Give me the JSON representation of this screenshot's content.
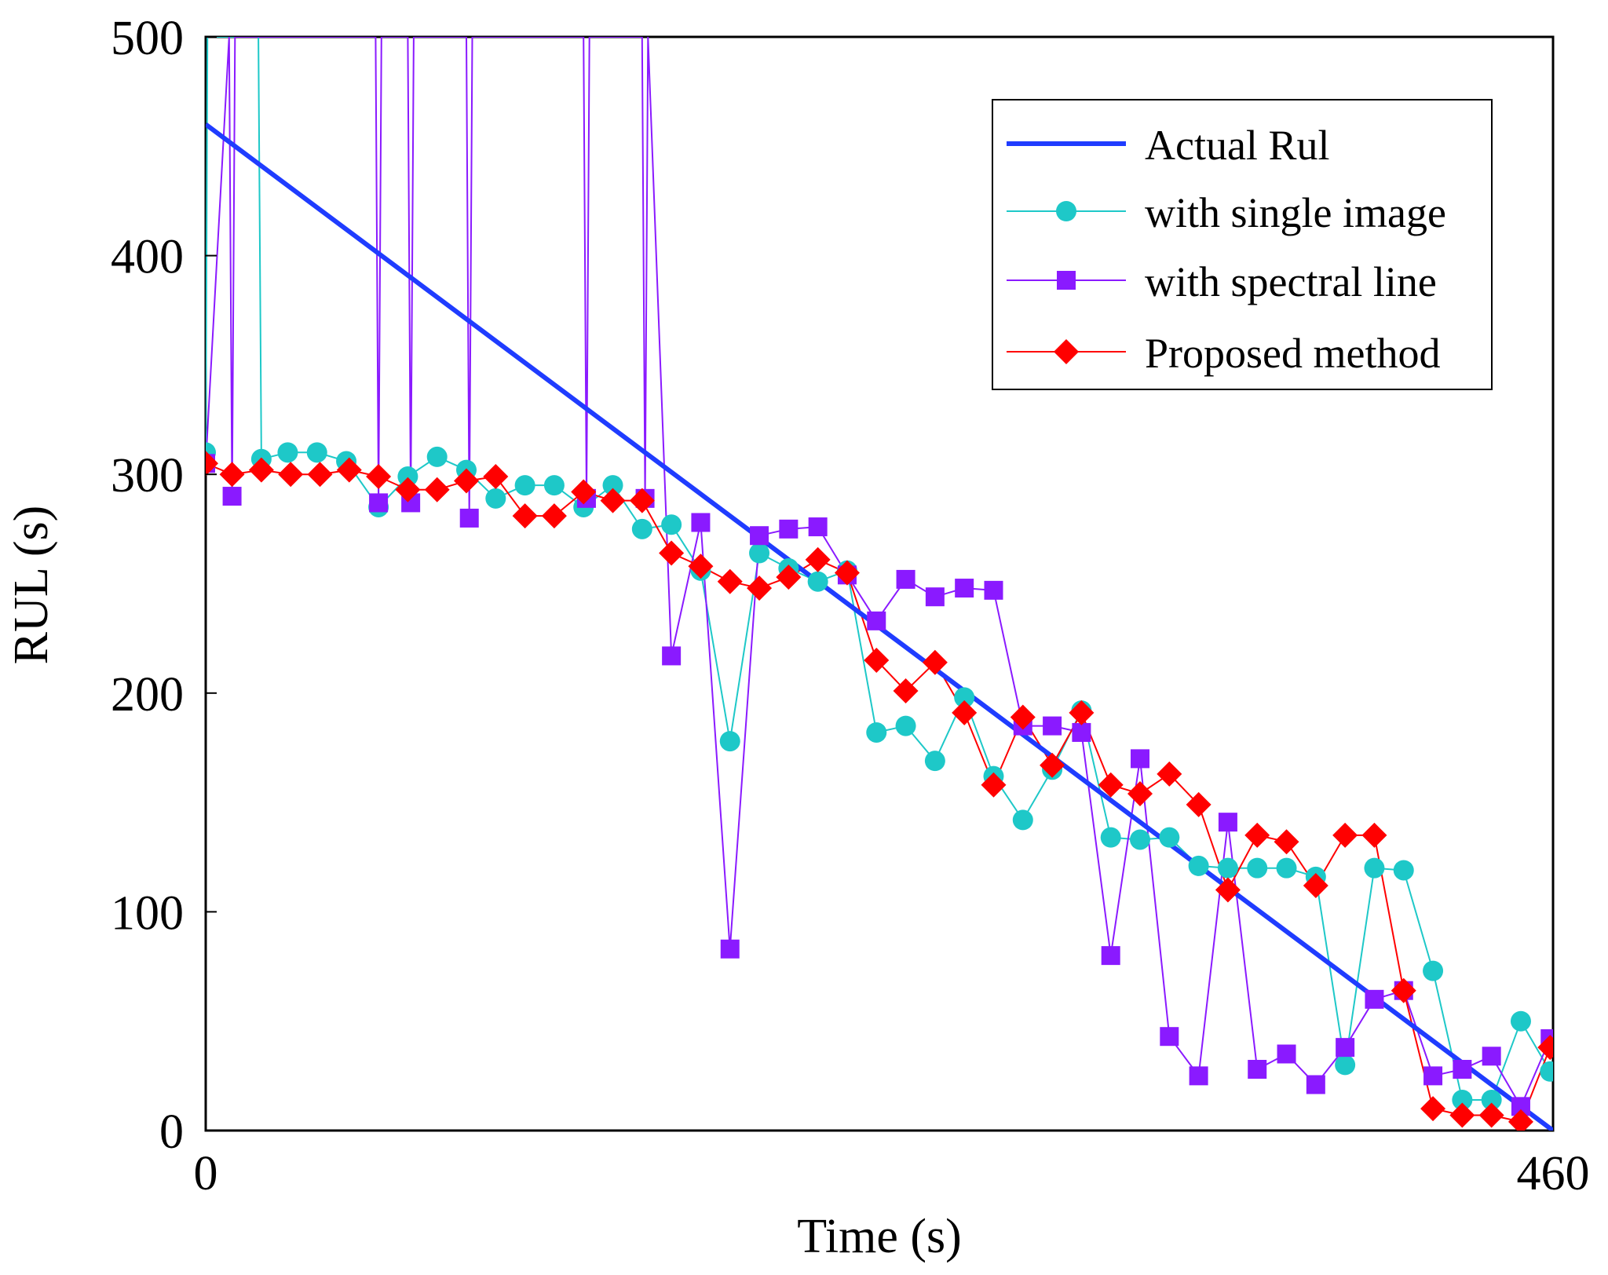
{
  "chart_data": {
    "type": "line",
    "title": "",
    "xlabel": "Time (s)",
    "ylabel": "RUL (s)",
    "xlim": [
      0,
      460
    ],
    "ylim": [
      0,
      500
    ],
    "x_ticks": [
      "0",
      "460"
    ],
    "y_ticks": [
      "0",
      "100",
      "200",
      "300",
      "400",
      "500"
    ],
    "legend_position": "top-right",
    "colors": {
      "actual": "#1f3cff",
      "single": "#1ec8c8",
      "spectral": "#8a1aff",
      "proposed": "#ff0000"
    },
    "series": [
      {
        "name": "Actual Rul",
        "key": "actual",
        "marker": "none",
        "x": [
          0,
          460
        ],
        "y": [
          460,
          0
        ]
      },
      {
        "name": "with single image",
        "key": "single",
        "marker": "circle",
        "x": [
          0,
          0.6,
          17,
          18,
          19,
          28,
          38,
          48,
          59,
          69,
          79,
          89,
          99,
          109,
          119,
          129,
          139,
          149,
          159,
          169,
          179,
          189,
          199,
          209,
          219,
          229,
          239,
          249,
          259,
          269,
          279,
          289,
          299,
          309,
          319,
          329,
          339,
          349,
          359,
          369,
          379,
          389,
          399,
          409,
          419,
          429,
          439,
          449,
          459
        ],
        "y": [
          310,
          500,
          500,
          500,
          307,
          310,
          310,
          306,
          285,
          299,
          308,
          302,
          289,
          295,
          295,
          285,
          295,
          275,
          277,
          256,
          178,
          264,
          257,
          251,
          256,
          182,
          185,
          169,
          198,
          162,
          142,
          165,
          192,
          134,
          133,
          134,
          121,
          120,
          120,
          120,
          116,
          30,
          120,
          119,
          73,
          14,
          14,
          50,
          27
        ]
      },
      {
        "name": "with spectral line",
        "key": "spectral",
        "marker": "square",
        "x": [
          0,
          8,
          9,
          10,
          58,
          59,
          60,
          69,
          70,
          71,
          89,
          90,
          91,
          129,
          130,
          131,
          149,
          150,
          151,
          159,
          169,
          179,
          189,
          199,
          209,
          219,
          229,
          239,
          249,
          259,
          269,
          279,
          289,
          299,
          309,
          319,
          329,
          339,
          349,
          359,
          369,
          379,
          389,
          399,
          409,
          419,
          429,
          439,
          449,
          459
        ],
        "y": [
          305,
          500,
          290,
          500,
          500,
          287,
          500,
          500,
          287,
          500,
          500,
          280,
          500,
          500,
          289,
          500,
          500,
          289,
          500,
          217,
          278,
          83,
          272,
          275,
          276,
          254,
          233,
          252,
          244,
          248,
          247,
          185,
          185,
          182,
          80,
          170,
          43,
          25,
          141,
          28,
          35,
          21,
          38,
          60,
          64,
          25,
          28,
          34,
          11,
          42
        ]
      },
      {
        "name": "Proposed method",
        "key": "proposed",
        "marker": "diamond",
        "x": [
          0,
          9,
          19,
          29,
          39,
          49,
          59,
          69,
          79,
          89,
          99,
          109,
          119,
          129,
          139,
          149,
          159,
          169,
          179,
          189,
          199,
          209,
          219,
          229,
          239,
          249,
          259,
          269,
          279,
          289,
          299,
          309,
          319,
          329,
          339,
          349,
          359,
          369,
          379,
          389,
          399,
          409,
          419,
          429,
          439,
          449,
          459
        ],
        "y": [
          305,
          300,
          302,
          300,
          300,
          302,
          299,
          293,
          293,
          297,
          299,
          281,
          281,
          292,
          288,
          288,
          264,
          258,
          251,
          248,
          253,
          261,
          255,
          215,
          201,
          214,
          191,
          158,
          189,
          167,
          191,
          158,
          154,
          163,
          149,
          110,
          135,
          132,
          112,
          135,
          135,
          64,
          10,
          7,
          7,
          4,
          38
        ]
      }
    ]
  }
}
